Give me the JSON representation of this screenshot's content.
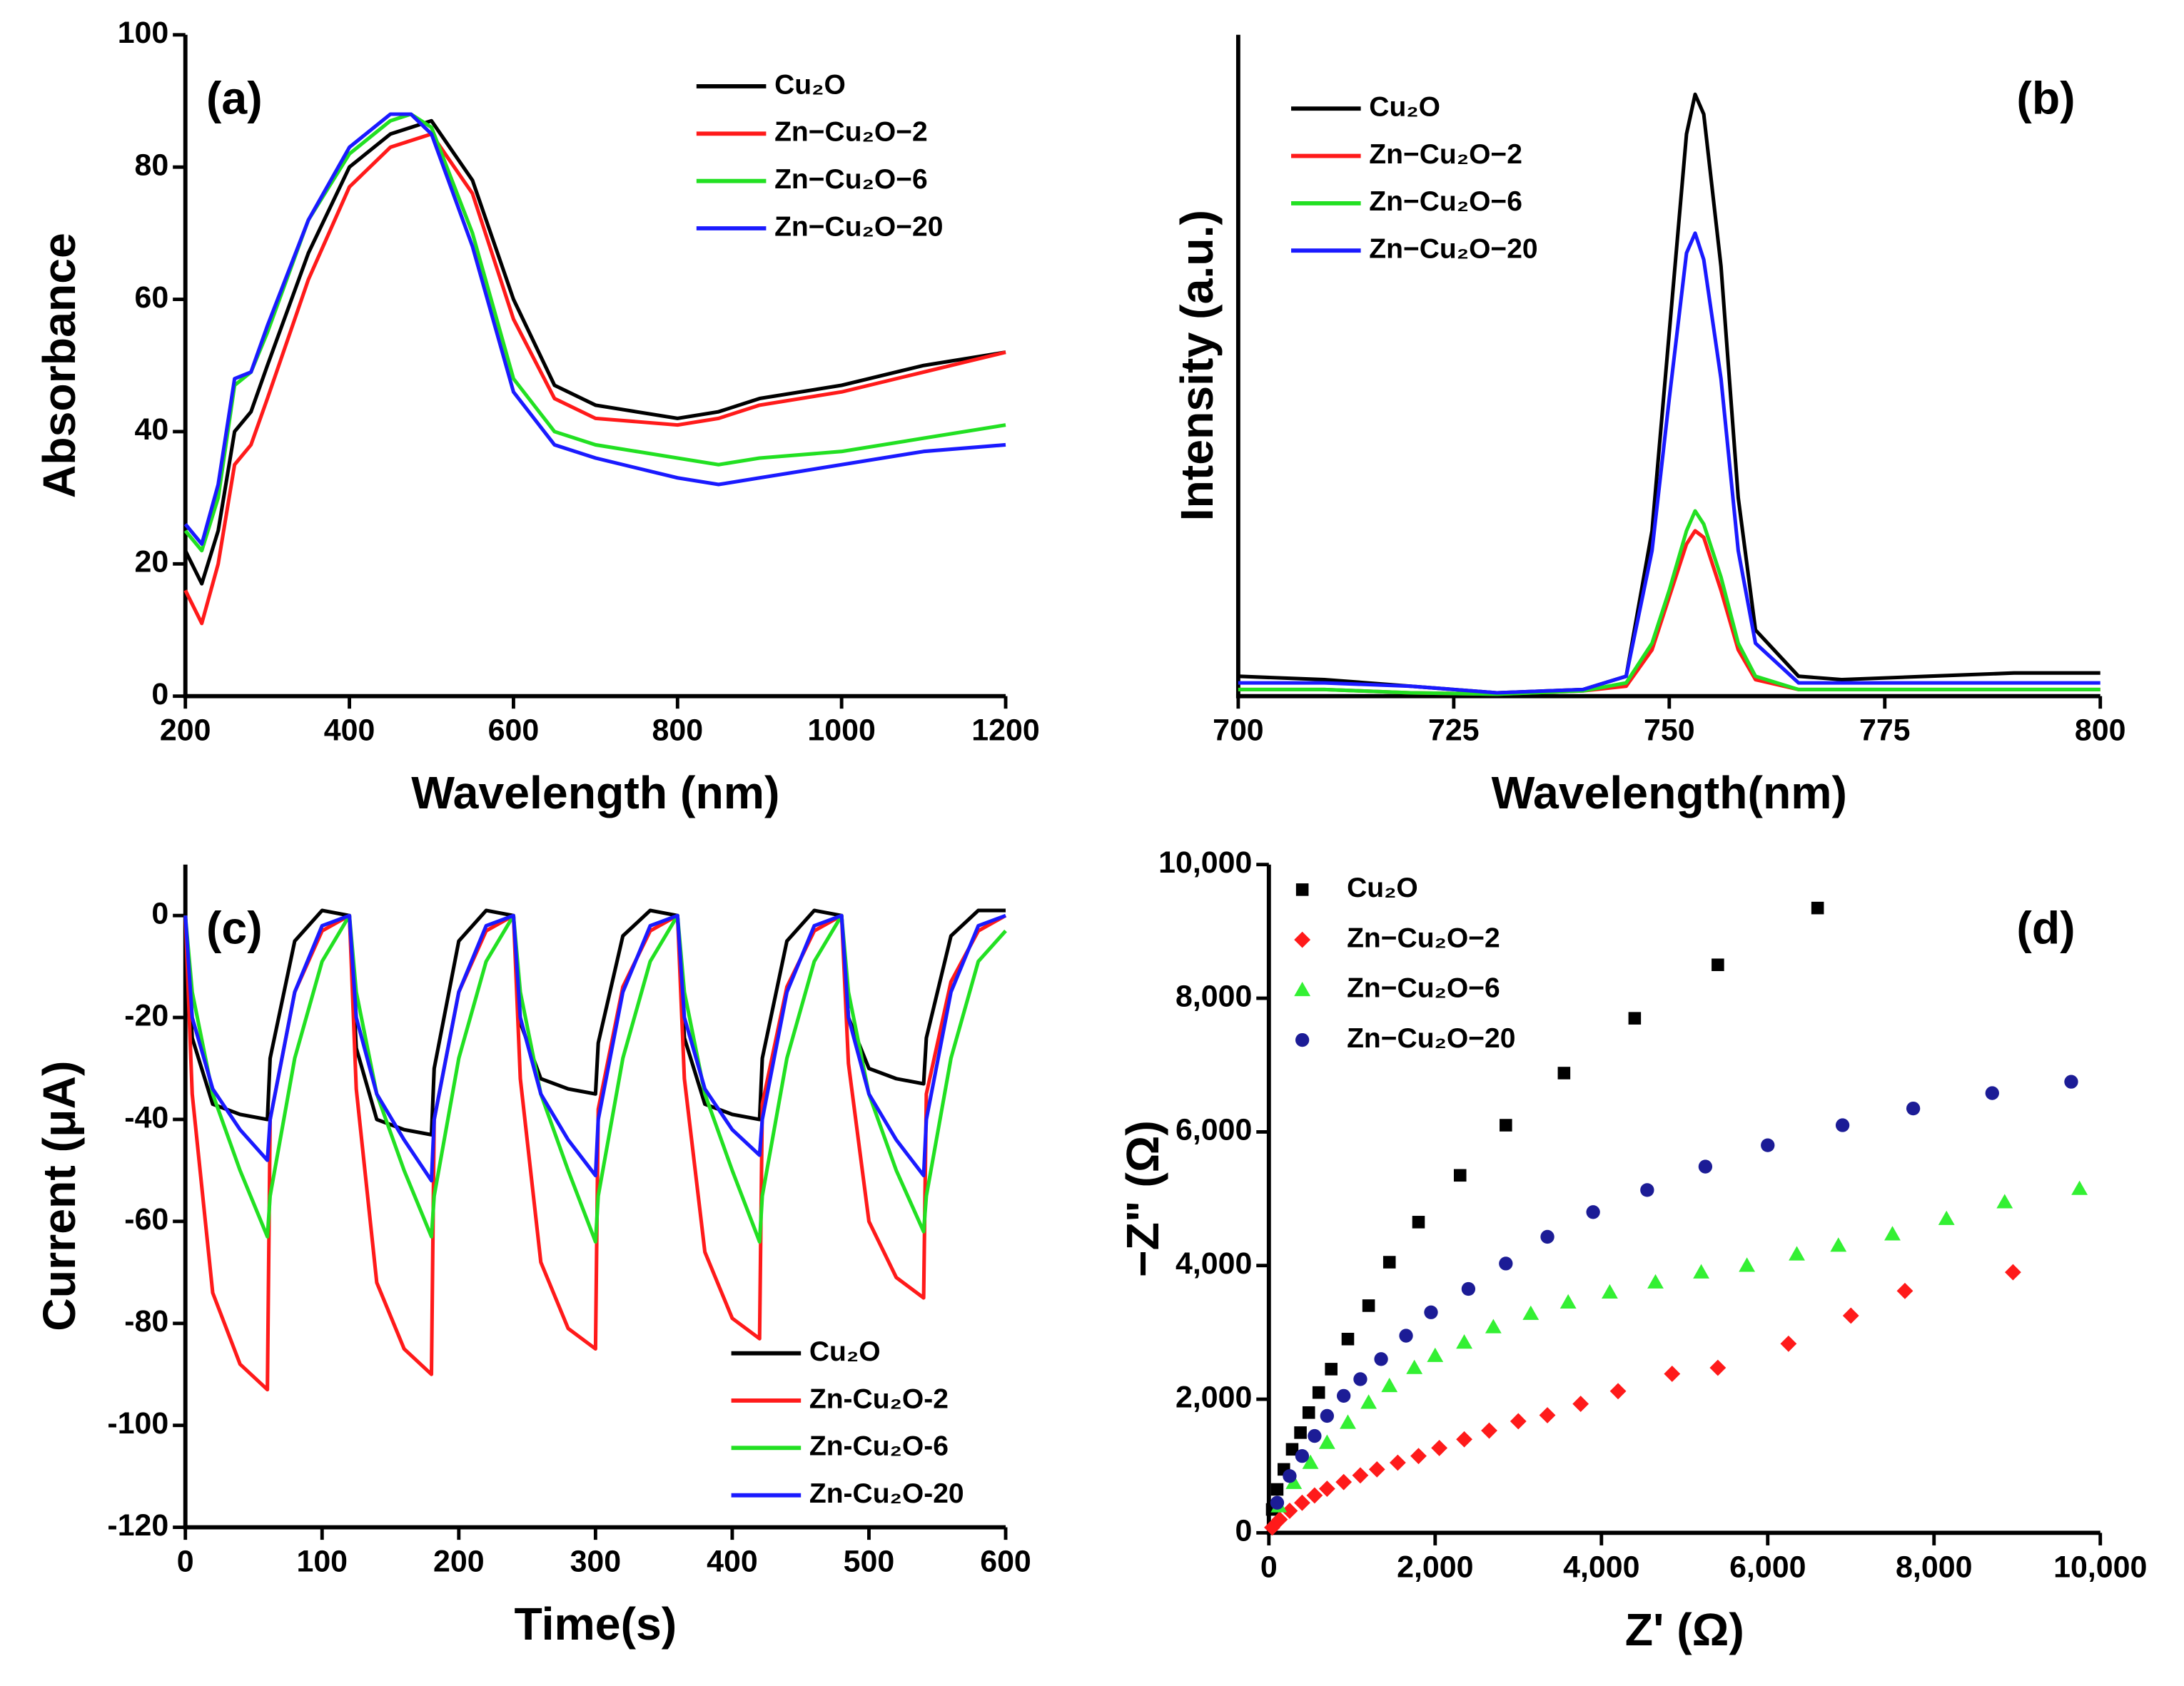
{
  "chart_data": [
    {
      "type": "line",
      "panel_label": "(a)",
      "xlabel": "Wavelength (nm)",
      "ylabel": "Absorbance",
      "xlim": [
        200,
        1200
      ],
      "ylim": [
        0,
        100
      ],
      "xticks": [
        200,
        400,
        600,
        800,
        1000,
        1200
      ],
      "yticks": [
        0,
        20,
        40,
        60,
        80,
        100
      ],
      "legend": "upper right",
      "x": [
        200,
        220,
        240,
        260,
        280,
        300,
        350,
        400,
        450,
        475,
        500,
        550,
        600,
        650,
        700,
        800,
        850,
        900,
        1000,
        1100,
        1200
      ],
      "series": [
        {
          "name": "Cu₂O",
          "color": "#000000",
          "values": [
            22,
            17,
            25,
            40,
            43,
            50,
            67,
            80,
            85,
            86,
            87,
            78,
            60,
            47,
            44,
            42,
            43,
            45,
            47,
            50,
            52
          ]
        },
        {
          "name": "Zn−Cu₂O−2",
          "color": "#ff1a1a",
          "values": [
            16,
            11,
            20,
            35,
            38,
            45,
            63,
            77,
            83,
            84,
            85,
            76,
            57,
            45,
            42,
            41,
            42,
            44,
            46,
            49,
            52
          ]
        },
        {
          "name": "Zn−Cu₂O−6",
          "color": "#22e022",
          "values": [
            25,
            22,
            30,
            47,
            49,
            55,
            72,
            82,
            87,
            88,
            86,
            70,
            48,
            40,
            38,
            36,
            35,
            36,
            37,
            39,
            41
          ]
        },
        {
          "name": "Zn−Cu₂O−20",
          "color": "#1a1aff",
          "values": [
            26,
            23,
            32,
            48,
            49,
            56,
            72,
            83,
            88,
            88,
            85,
            68,
            46,
            38,
            36,
            33,
            32,
            33,
            35,
            37,
            38
          ]
        }
      ]
    },
    {
      "type": "line",
      "panel_label": "(b)",
      "xlabel": "Wavelength(nm)",
      "ylabel": "Intensity (a.u.)",
      "xlim": [
        700,
        800
      ],
      "ylim": [
        0,
        100
      ],
      "xticks": [
        700,
        725,
        750,
        775,
        800
      ],
      "legend": "upper left",
      "x": [
        700,
        710,
        720,
        730,
        740,
        745,
        748,
        750,
        752,
        753,
        754,
        756,
        758,
        760,
        765,
        770,
        780,
        790,
        800
      ],
      "series": [
        {
          "name": "Cu₂O",
          "color": "#000000",
          "values": [
            3,
            2.5,
            1.5,
            0.5,
            1,
            3,
            25,
            55,
            85,
            91,
            88,
            65,
            30,
            10,
            3,
            2.5,
            3,
            3.5,
            3.5
          ]
        },
        {
          "name": "Zn−Cu₂O−2",
          "color": "#ff1a1a",
          "values": [
            1,
            1,
            0.5,
            0.3,
            0.8,
            1.5,
            7,
            15,
            23,
            25,
            24,
            16,
            7,
            2.5,
            1,
            1,
            1,
            1,
            1
          ]
        },
        {
          "name": "Zn−Cu₂O−6",
          "color": "#22e022",
          "values": [
            1,
            1,
            0.5,
            0.3,
            0.8,
            2,
            8,
            16,
            25,
            28,
            26,
            18,
            8,
            3,
            1,
            1,
            1,
            1,
            1
          ]
        },
        {
          "name": "Zn−Cu₂O−20",
          "color": "#1a1aff",
          "values": [
            2,
            2,
            1.5,
            0.5,
            1,
            3,
            22,
            45,
            67,
            70,
            66,
            48,
            22,
            8,
            2,
            2,
            2,
            2,
            2
          ]
        }
      ]
    },
    {
      "type": "line",
      "panel_label": "(c)",
      "xlabel": "Time(s)",
      "ylabel": "Current (μA)",
      "xlim": [
        0,
        600
      ],
      "ylim": [
        -120,
        10
      ],
      "xticks": [
        0,
        100,
        200,
        300,
        400,
        500,
        600
      ],
      "yticks": [
        -120,
        -100,
        -80,
        -60,
        -40,
        -20,
        0
      ],
      "legend": "lower right",
      "x": [
        0,
        5,
        20,
        40,
        60,
        62,
        80,
        100,
        120,
        125,
        140,
        160,
        180,
        182,
        200,
        220,
        240,
        245,
        260,
        280,
        300,
        302,
        320,
        340,
        360,
        365,
        380,
        400,
        420,
        422,
        440,
        460,
        480,
        485,
        500,
        520,
        540,
        542,
        560,
        580,
        600
      ],
      "series": [
        {
          "name": "Cu₂O",
          "color": "#000000",
          "values": [
            0,
            -24,
            -37,
            -39,
            -40,
            -28,
            -5,
            1,
            0,
            -26,
            -40,
            -42,
            -43,
            -30,
            -5,
            1,
            0,
            -21,
            -32,
            -34,
            -35,
            -25,
            -4,
            1,
            0,
            -24,
            -37,
            -39,
            -40,
            -28,
            -5,
            1,
            0,
            -20,
            -30,
            -32,
            -33,
            -24,
            -4,
            1,
            1
          ]
        },
        {
          "name": "Zn-Cu₂O-2",
          "color": "#ff1a1a",
          "values": [
            0,
            -35,
            -74,
            -88,
            -93,
            -40,
            -15,
            -3,
            0,
            -34,
            -72,
            -85,
            -90,
            -40,
            -15,
            -3,
            0,
            -32,
            -68,
            -81,
            -85,
            -38,
            -14,
            -3,
            0,
            -32,
            -66,
            -79,
            -83,
            -37,
            -14,
            -3,
            0,
            -29,
            -60,
            -71,
            -75,
            -35,
            -13,
            -3,
            0
          ]
        },
        {
          "name": "Zn-Cu₂O-6",
          "color": "#22e022",
          "values": [
            0,
            -15,
            -35,
            -50,
            -63,
            -55,
            -28,
            -9,
            0,
            -15,
            -35,
            -50,
            -63,
            -55,
            -28,
            -9,
            0,
            -15,
            -35,
            -50,
            -64,
            -55,
            -28,
            -9,
            0,
            -15,
            -35,
            -50,
            -64,
            -55,
            -28,
            -9,
            0,
            -15,
            -35,
            -50,
            -62,
            -55,
            -28,
            -9,
            -3
          ]
        },
        {
          "name": "Zn-Cu₂O-20",
          "color": "#1a1aff",
          "values": [
            0,
            -20,
            -34,
            -42,
            -48,
            -40,
            -15,
            -2,
            0,
            -20,
            -35,
            -44,
            -52,
            -40,
            -15,
            -2,
            0,
            -20,
            -35,
            -44,
            -51,
            -40,
            -15,
            -2,
            0,
            -20,
            -34,
            -42,
            -47,
            -40,
            -15,
            -2,
            0,
            -20,
            -35,
            -44,
            -51,
            -40,
            -15,
            -2,
            0
          ]
        }
      ]
    },
    {
      "type": "scatter",
      "panel_label": "(d)",
      "xlabel": "Z'  (Ω)",
      "ylabel": "−Z\"  (Ω)",
      "xlim": [
        0,
        10000
      ],
      "ylim": [
        0,
        10000
      ],
      "xticks": [
        0,
        {
          "value": 2000,
          "label": "2,000"
        },
        {
          "value": 4000,
          "label": "4,000"
        },
        {
          "value": 6000,
          "label": "6,000"
        },
        {
          "value": 8000,
          "label": "8,000"
        },
        {
          "value": 10000,
          "label": "10,000"
        }
      ],
      "yticks": [
        0,
        {
          "value": 2000,
          "label": "2,000"
        },
        {
          "value": 4000,
          "label": "4,000"
        },
        {
          "value": 6000,
          "label": "6,000"
        },
        {
          "value": 8000,
          "label": "8,000"
        },
        {
          "value": 10000,
          "label": "10,000"
        }
      ],
      "legend": "upper left",
      "series": [
        {
          "name": "Cu₂O",
          "color": "#000000",
          "marker": "square",
          "x": [
            6600,
            5400,
            4400,
            3550,
            2850,
            2300,
            1800,
            1450,
            1200,
            950,
            750,
            600,
            480,
            380,
            280,
            180,
            100,
            40
          ],
          "values": [
            9350,
            8500,
            7700,
            6880,
            6100,
            5350,
            4650,
            4050,
            3400,
            2900,
            2450,
            2100,
            1800,
            1500,
            1250,
            950,
            650,
            350
          ]
        },
        {
          "name": "Zn−Cu₂O−2",
          "color": "#ff1a1a",
          "marker": "diamond",
          "x": [
            8950,
            7650,
            7000,
            6250,
            5400,
            4850,
            4200,
            3750,
            3350,
            3000,
            2650,
            2350,
            2050,
            1800,
            1550,
            1300,
            1100,
            900,
            700,
            550,
            400,
            250,
            130,
            40
          ],
          "values": [
            3900,
            3620,
            3250,
            2830,
            2470,
            2380,
            2120,
            1930,
            1760,
            1670,
            1530,
            1400,
            1270,
            1150,
            1050,
            950,
            860,
            760,
            660,
            560,
            450,
            330,
            200,
            80
          ]
        },
        {
          "name": "Zn−Cu₂O−6",
          "color": "#33f033",
          "marker": "triangle",
          "x": [
            9750,
            8850,
            8150,
            7500,
            6850,
            6350,
            5750,
            5200,
            4650,
            4100,
            3600,
            3150,
            2700,
            2350,
            2000,
            1750,
            1450,
            1200,
            950,
            700,
            500,
            300,
            120
          ],
          "values": [
            5150,
            4950,
            4700,
            4470,
            4300,
            4170,
            4000,
            3900,
            3750,
            3600,
            3450,
            3280,
            3080,
            2850,
            2650,
            2470,
            2200,
            1950,
            1650,
            1350,
            1050,
            750,
            400
          ]
        },
        {
          "name": "Zn−Cu₂O−20",
          "color": "#1c1c96",
          "marker": "circle",
          "x": [
            9650,
            8700,
            7750,
            6900,
            6000,
            5250,
            4550,
            3900,
            3350,
            2850,
            2400,
            1950,
            1650,
            1350,
            1100,
            900,
            700,
            550,
            400,
            250,
            100
          ],
          "values": [
            6750,
            6580,
            6350,
            6100,
            5800,
            5480,
            5130,
            4800,
            4430,
            4030,
            3650,
            3300,
            2950,
            2600,
            2300,
            2050,
            1750,
            1450,
            1150,
            850,
            450
          ]
        }
      ]
    }
  ]
}
